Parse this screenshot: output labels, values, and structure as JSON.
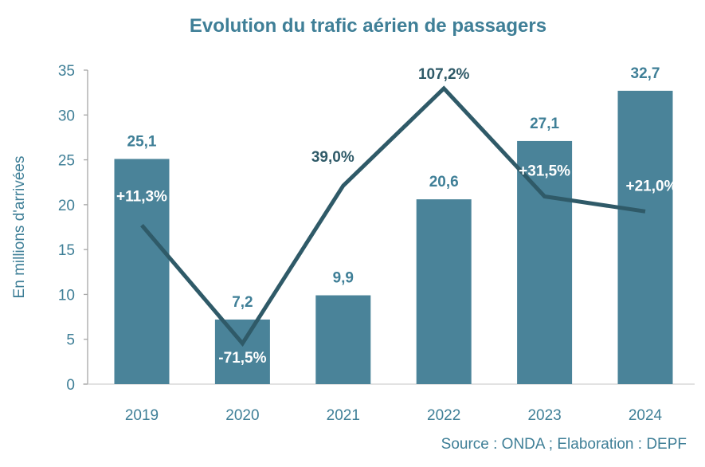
{
  "chart_data": {
    "type": "bar+line",
    "title": "Evolution du trafic aérien de passagers",
    "ylabel": "En millions d'arrivées",
    "xlabel": "",
    "ylim": [
      0,
      35
    ],
    "yticks": [
      "0",
      "5",
      "10",
      "15",
      "20",
      "25",
      "30",
      "35"
    ],
    "y2lim": [
      -100,
      120
    ],
    "categories": [
      "2019",
      "2020",
      "2021",
      "2022",
      "2023",
      "2024"
    ],
    "bars": {
      "values": [
        25.1,
        7.2,
        9.9,
        20.6,
        27.1,
        32.7
      ],
      "labels": [
        "25,1",
        "7,2",
        "9,9",
        "20,6",
        "27,1",
        "32,7"
      ],
      "color": "#4a8399"
    },
    "line": {
      "values": [
        11.3,
        -71.5,
        39.0,
        107.2,
        31.5,
        21.0
      ],
      "labels": [
        "+11,3%",
        "-71,5%",
        "39,0%",
        "107,2%",
        "+31,5%",
        "+21,0%"
      ],
      "color": "#2f5a68",
      "axis": "secondary (hidden)"
    },
    "grid": false,
    "legend": "none",
    "source": "Source : ONDA ; Elaboration : DEPF"
  }
}
